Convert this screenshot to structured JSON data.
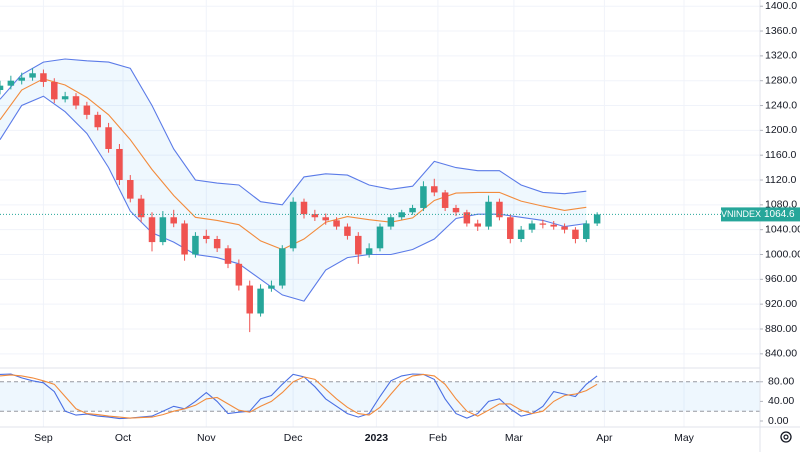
{
  "chart_data": [
    {
      "type": "candlestick",
      "symbol": "VNINDEX",
      "last": 1064.6,
      "last_color": "#26a69a",
      "up_color": "#26a69a",
      "down_color": "#ef5350",
      "xlim": [
        -12,
        198
      ],
      "ylim": [
        822,
        1410
      ],
      "grid": true,
      "xticks": [
        {
          "value": 0,
          "label": "Sep"
        },
        {
          "value": 22,
          "label": "Oct"
        },
        {
          "value": 45,
          "label": "Nov"
        },
        {
          "value": 69,
          "label": "Dec"
        },
        {
          "value": 92,
          "label": "2023"
        },
        {
          "value": 109,
          "label": "Feb"
        },
        {
          "value": 130,
          "label": "Mar"
        },
        {
          "value": 155,
          "label": "Apr"
        },
        {
          "value": 177,
          "label": "May"
        }
      ],
      "yticks": [
        {
          "value": 1400,
          "label": "1400.0"
        },
        {
          "value": 1360,
          "label": "1360.0"
        },
        {
          "value": 1320,
          "label": "1320.0"
        },
        {
          "value": 1280,
          "label": "1280.0"
        },
        {
          "value": 1240,
          "label": "1240.0"
        },
        {
          "value": 1200,
          "label": "1200.0"
        },
        {
          "value": 1160,
          "label": "1160.0"
        },
        {
          "value": 1120,
          "label": "1120.0"
        },
        {
          "value": 1080,
          "label": "1080.0"
        },
        {
          "value": 1040,
          "label": "1040.00"
        },
        {
          "value": 1000,
          "label": "1000.00"
        },
        {
          "value": 960,
          "label": "960.00"
        },
        {
          "value": 920,
          "label": "920.00"
        },
        {
          "value": 880,
          "label": "880.00"
        },
        {
          "value": 840,
          "label": "840.00"
        }
      ],
      "x": [
        -12,
        -9,
        -6,
        -3,
        0,
        3,
        6,
        9,
        12,
        15,
        18,
        21,
        24,
        27,
        30,
        33,
        36,
        39,
        42,
        45,
        48,
        51,
        54,
        57,
        60,
        63,
        66,
        69,
        72,
        75,
        78,
        81,
        84,
        87,
        90,
        93,
        96,
        99,
        102,
        105,
        108,
        111,
        114,
        117,
        120,
        123,
        126,
        129,
        132,
        135,
        138,
        141,
        144,
        147,
        150,
        153
      ],
      "open": [
        1265,
        1272,
        1280,
        1285,
        1292,
        1278,
        1250,
        1255,
        1240,
        1225,
        1205,
        1170,
        1120,
        1090,
        1060,
        1020,
        1060,
        1050,
        1000,
        1030,
        1025,
        1010,
        985,
        950,
        905,
        945,
        950,
        1010,
        1085,
        1065,
        1060,
        1055,
        1045,
        1030,
        1000,
        1010,
        1045,
        1060,
        1068,
        1075,
        1110,
        1100,
        1075,
        1068,
        1050,
        1045,
        1085,
        1060,
        1025,
        1040,
        1050,
        1048,
        1045,
        1040,
        1025,
        1050
      ],
      "high": [
        1280,
        1288,
        1293,
        1300,
        1298,
        1284,
        1262,
        1260,
        1246,
        1230,
        1212,
        1178,
        1128,
        1096,
        1068,
        1070,
        1072,
        1055,
        1036,
        1040,
        1030,
        1015,
        992,
        958,
        952,
        958,
        1015,
        1092,
        1090,
        1072,
        1066,
        1060,
        1050,
        1036,
        1018,
        1050,
        1064,
        1072,
        1080,
        1118,
        1122,
        1104,
        1080,
        1072,
        1056,
        1095,
        1090,
        1064,
        1046,
        1055,
        1056,
        1054,
        1050,
        1044,
        1055,
        1068
      ],
      "low": [
        1258,
        1266,
        1274,
        1280,
        1270,
        1244,
        1245,
        1234,
        1218,
        1200,
        1164,
        1112,
        1084,
        1052,
        1005,
        1015,
        1044,
        990,
        995,
        1018,
        1004,
        978,
        942,
        875,
        900,
        940,
        945,
        1005,
        1058,
        1054,
        1048,
        1040,
        1024,
        985,
        995,
        1005,
        1040,
        1056,
        1064,
        1070,
        1094,
        1070,
        1062,
        1045,
        1038,
        1040,
        1055,
        1018,
        1020,
        1035,
        1042,
        1040,
        1034,
        1018,
        1020,
        1046
      ],
      "close": [
        1272,
        1280,
        1285,
        1292,
        1278,
        1250,
        1255,
        1240,
        1225,
        1205,
        1170,
        1120,
        1090,
        1060,
        1020,
        1060,
        1050,
        1000,
        1030,
        1025,
        1010,
        985,
        950,
        905,
        945,
        950,
        1010,
        1085,
        1065,
        1060,
        1055,
        1045,
        1030,
        1000,
        1010,
        1045,
        1060,
        1068,
        1075,
        1110,
        1100,
        1075,
        1068,
        1050,
        1045,
        1085,
        1060,
        1025,
        1040,
        1050,
        1048,
        1045,
        1040,
        1025,
        1050,
        1064.6
      ],
      "bands": {
        "x": [
          -12,
          -6,
          0,
          6,
          12,
          18,
          24,
          30,
          36,
          42,
          48,
          54,
          60,
          66,
          72,
          78,
          84,
          90,
          96,
          102,
          108,
          114,
          120,
          126,
          132,
          138,
          144,
          150
        ],
        "upper": [
          1250,
          1290,
          1310,
          1315,
          1312,
          1310,
          1300,
          1240,
          1170,
          1120,
          1115,
          1112,
          1085,
          1080,
          1125,
          1130,
          1128,
          1112,
          1105,
          1110,
          1150,
          1140,
          1135,
          1135,
          1112,
          1100,
          1098,
          1102
        ],
        "basis": [
          1217,
          1265,
          1283,
          1273,
          1253,
          1225,
          1185,
          1137,
          1095,
          1060,
          1055,
          1048,
          1022,
          1008,
          1025,
          1052,
          1061,
          1056,
          1052,
          1059,
          1087,
          1099,
          1100,
          1100,
          1086,
          1078,
          1071,
          1076
        ],
        "lower": [
          1185,
          1240,
          1255,
          1230,
          1195,
          1140,
          1070,
          1035,
          1020,
          1000,
          995,
          985,
          960,
          935,
          925,
          975,
          995,
          1000,
          1000,
          1008,
          1025,
          1058,
          1065,
          1065,
          1060,
          1055,
          1045,
          1050
        ],
        "band_color": "#5b7be8",
        "basis_color": "#f28b3c",
        "fill": "rgba(33,150,243,0.07)"
      }
    },
    {
      "type": "line",
      "xlim": [
        -12,
        198
      ],
      "ylim": [
        0,
        100
      ],
      "band": [
        20,
        80
      ],
      "yticks": [
        {
          "value": 80,
          "label": "80.00"
        },
        {
          "value": 40,
          "label": "40.00"
        },
        {
          "value": 0,
          "label": "0.00"
        }
      ],
      "x": [
        -12,
        -9,
        -6,
        -3,
        0,
        3,
        6,
        9,
        12,
        15,
        18,
        21,
        24,
        27,
        30,
        33,
        36,
        39,
        42,
        45,
        48,
        51,
        54,
        57,
        60,
        63,
        66,
        69,
        72,
        75,
        78,
        81,
        84,
        87,
        90,
        93,
        96,
        99,
        102,
        105,
        108,
        111,
        114,
        117,
        120,
        123,
        126,
        129,
        132,
        135,
        138,
        141,
        144,
        147,
        150,
        153
      ],
      "series": [
        {
          "color": "#4a6fe3",
          "values": [
            95,
            96,
            88,
            82,
            78,
            60,
            20,
            12,
            14,
            10,
            8,
            5,
            6,
            8,
            10,
            20,
            30,
            25,
            40,
            58,
            40,
            15,
            18,
            20,
            45,
            52,
            75,
            95,
            90,
            70,
            45,
            30,
            15,
            8,
            15,
            50,
            82,
            92,
            96,
            95,
            85,
            45,
            15,
            6,
            15,
            40,
            45,
            25,
            10,
            15,
            30,
            60,
            55,
            50,
            75,
            92
          ]
        },
        {
          "color": "#f28b3c",
          "values": [
            92,
            94,
            92,
            88,
            82,
            75,
            50,
            25,
            15,
            13,
            10,
            8,
            6,
            7,
            8,
            13,
            20,
            25,
            32,
            45,
            48,
            35,
            22,
            18,
            30,
            40,
            58,
            80,
            90,
            85,
            65,
            45,
            28,
            15,
            12,
            28,
            55,
            80,
            92,
            95,
            92,
            75,
            45,
            20,
            10,
            22,
            35,
            35,
            22,
            15,
            20,
            40,
            52,
            55,
            62,
            75
          ]
        }
      ]
    }
  ]
}
